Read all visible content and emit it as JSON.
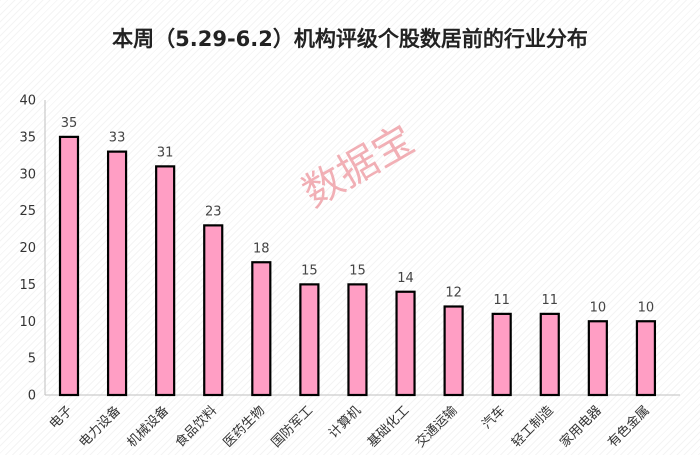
{
  "chart_data": {
    "type": "bar",
    "title": "本周（5.29-6.2）机构评级个股数居前的行业分布",
    "xlabel": "",
    "ylabel": "",
    "ylim": [
      0,
      40
    ],
    "yticks": [
      0,
      5,
      10,
      15,
      20,
      25,
      30,
      35,
      40
    ],
    "grid": false,
    "legend": "none",
    "categories": [
      "电子",
      "电力设备",
      "机械设备",
      "食品饮料",
      "医药生物",
      "国防军工",
      "计算机",
      "基础化工",
      "交通运输",
      "汽车",
      "轻工制造",
      "家用电器",
      "有色金属"
    ],
    "values": [
      35,
      33,
      31,
      23,
      18,
      15,
      15,
      14,
      12,
      11,
      11,
      10,
      10
    ],
    "bar_color": "#ff9ec4",
    "bar_outline": "#000000"
  },
  "watermark": "数据宝"
}
